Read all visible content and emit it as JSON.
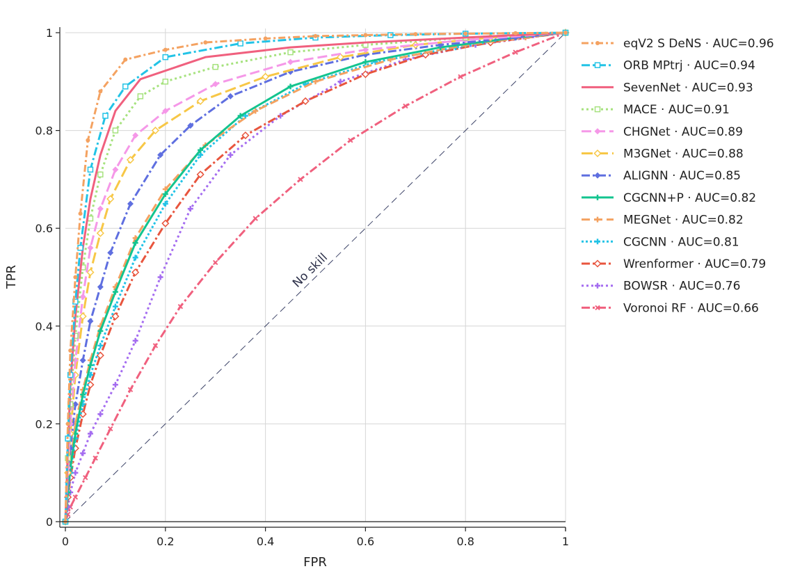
{
  "chart_data": {
    "type": "line",
    "title": "",
    "xlabel": "FPR",
    "ylabel": "TPR",
    "xlim": [
      0,
      1
    ],
    "ylim": [
      0,
      1
    ],
    "grid": true,
    "legend_position": "right",
    "x_ticks": [
      {
        "value": 0,
        "label": "0"
      },
      {
        "value": 0.2,
        "label": "0.2"
      },
      {
        "value": 0.4,
        "label": "0.4"
      },
      {
        "value": 0.6,
        "label": "0.6"
      },
      {
        "value": 0.8,
        "label": "0.8"
      },
      {
        "value": 1,
        "label": "1"
      }
    ],
    "y_ticks": [
      {
        "value": 0,
        "label": "0"
      },
      {
        "value": 0.2,
        "label": "0.2"
      },
      {
        "value": 0.4,
        "label": "0.4"
      },
      {
        "value": 0.6,
        "label": "0.6"
      },
      {
        "value": 0.8,
        "label": "0.8"
      },
      {
        "value": 1,
        "label": "1"
      }
    ],
    "reference_line": {
      "label": "No skill",
      "x": [
        0,
        1
      ],
      "y": [
        0,
        1
      ],
      "color": "#3d4468"
    },
    "series": [
      {
        "name": "eqV2 S DeNS",
        "legend": "eqV2 S DeNS · AUC=0.96",
        "auc": 0.96,
        "color": "#f4a261",
        "dash": "10,4,3,4",
        "marker": "circle",
        "x": [
          0,
          0.005,
          0.01,
          0.02,
          0.03,
          0.045,
          0.07,
          0.12,
          0.2,
          0.28,
          0.4,
          0.5,
          0.6,
          0.7,
          0.8,
          0.9,
          1
        ],
        "y": [
          0,
          0.2,
          0.35,
          0.5,
          0.63,
          0.78,
          0.88,
          0.945,
          0.965,
          0.98,
          0.988,
          0.993,
          0.995,
          0.997,
          0.998,
          0.999,
          1
        ]
      },
      {
        "name": "ORB MPtrj",
        "legend": "ORB MPtrj · AUC=0.94",
        "auc": 0.94,
        "color": "#22c3e6",
        "dash": "12,4,3,4",
        "marker": "square",
        "x": [
          0,
          0.005,
          0.01,
          0.02,
          0.03,
          0.05,
          0.08,
          0.12,
          0.2,
          0.35,
          0.5,
          0.65,
          0.8,
          1
        ],
        "y": [
          0,
          0.17,
          0.3,
          0.45,
          0.56,
          0.72,
          0.83,
          0.89,
          0.95,
          0.978,
          0.99,
          0.995,
          0.998,
          1
        ]
      },
      {
        "name": "SevenNet",
        "legend": "SevenNet · AUC=0.93",
        "auc": 0.93,
        "color": "#f0607e",
        "dash": "",
        "marker": "none",
        "x": [
          0,
          0.005,
          0.01,
          0.02,
          0.035,
          0.05,
          0.07,
          0.1,
          0.15,
          0.28,
          0.45,
          0.6,
          0.8,
          0.9,
          1
        ],
        "y": [
          0,
          0.15,
          0.28,
          0.42,
          0.56,
          0.66,
          0.75,
          0.84,
          0.905,
          0.95,
          0.97,
          0.98,
          0.99,
          0.995,
          1
        ]
      },
      {
        "name": "MACE",
        "legend": "MACE · AUC=0.91",
        "auc": 0.91,
        "color": "#a6e27e",
        "dash": "3,4",
        "marker": "square",
        "x": [
          0,
          0.005,
          0.01,
          0.02,
          0.035,
          0.05,
          0.07,
          0.1,
          0.15,
          0.2,
          0.3,
          0.45,
          0.6,
          0.8,
          1
        ],
        "y": [
          0,
          0.13,
          0.24,
          0.38,
          0.52,
          0.62,
          0.71,
          0.8,
          0.87,
          0.9,
          0.93,
          0.96,
          0.975,
          0.99,
          1
        ]
      },
      {
        "name": "CHGNet",
        "legend": "CHGNet · AUC=0.89",
        "auc": 0.89,
        "color": "#f598e8",
        "dash": "14,6",
        "marker": "diamond",
        "x": [
          0,
          0.005,
          0.01,
          0.02,
          0.035,
          0.05,
          0.07,
          0.1,
          0.14,
          0.2,
          0.3,
          0.45,
          0.6,
          0.8,
          1
        ],
        "y": [
          0,
          0.11,
          0.2,
          0.33,
          0.46,
          0.56,
          0.64,
          0.72,
          0.79,
          0.84,
          0.895,
          0.94,
          0.965,
          0.985,
          1
        ]
      },
      {
        "name": "M3GNet",
        "legend": "M3GNet · AUC=0.88",
        "auc": 0.88,
        "color": "#f7c746",
        "dash": "16,6",
        "marker": "diamond-open",
        "x": [
          0,
          0.005,
          0.01,
          0.02,
          0.035,
          0.05,
          0.07,
          0.09,
          0.13,
          0.18,
          0.27,
          0.4,
          0.55,
          0.7,
          0.85,
          1
        ],
        "y": [
          0,
          0.1,
          0.18,
          0.3,
          0.42,
          0.51,
          0.59,
          0.66,
          0.74,
          0.8,
          0.86,
          0.91,
          0.95,
          0.975,
          0.99,
          1
        ]
      },
      {
        "name": "ALIGNN",
        "legend": "ALIGNN · AUC=0.85",
        "auc": 0.85,
        "color": "#5f6fe0",
        "dash": "12,4,3,4",
        "marker": "diamond",
        "x": [
          0,
          0.005,
          0.01,
          0.02,
          0.035,
          0.05,
          0.07,
          0.09,
          0.13,
          0.19,
          0.25,
          0.33,
          0.45,
          0.6,
          0.75,
          0.9,
          1
        ],
        "y": [
          0,
          0.08,
          0.15,
          0.24,
          0.33,
          0.41,
          0.48,
          0.55,
          0.65,
          0.75,
          0.81,
          0.87,
          0.92,
          0.955,
          0.975,
          0.99,
          1
        ]
      },
      {
        "name": "CGCNN+P",
        "legend": "CGCNN+P · AUC=0.82",
        "auc": 0.82,
        "color": "#13c48f",
        "dash": "",
        "marker": "plus",
        "x": [
          0,
          0.005,
          0.01,
          0.02,
          0.035,
          0.05,
          0.07,
          0.1,
          0.14,
          0.2,
          0.27,
          0.35,
          0.45,
          0.6,
          0.75,
          0.9,
          1
        ],
        "y": [
          0,
          0.06,
          0.11,
          0.18,
          0.26,
          0.32,
          0.39,
          0.47,
          0.57,
          0.67,
          0.76,
          0.83,
          0.89,
          0.94,
          0.97,
          0.99,
          1
        ]
      },
      {
        "name": "MEGNet",
        "legend": "MEGNet · AUC=0.82",
        "auc": 0.82,
        "color": "#f4a261",
        "dash": "12,6",
        "marker": "plus",
        "x": [
          0,
          0.005,
          0.01,
          0.02,
          0.035,
          0.05,
          0.07,
          0.1,
          0.14,
          0.2,
          0.28,
          0.38,
          0.5,
          0.65,
          0.8,
          0.92,
          1
        ],
        "y": [
          0,
          0.07,
          0.12,
          0.2,
          0.27,
          0.33,
          0.4,
          0.48,
          0.58,
          0.68,
          0.77,
          0.84,
          0.9,
          0.945,
          0.975,
          0.99,
          1
        ]
      },
      {
        "name": "CGCNN",
        "legend": "CGCNN · AUC=0.81",
        "auc": 0.81,
        "color": "#22c3e6",
        "dash": "3,3",
        "marker": "plus",
        "x": [
          0,
          0.005,
          0.01,
          0.02,
          0.035,
          0.05,
          0.07,
          0.1,
          0.14,
          0.2,
          0.27,
          0.36,
          0.48,
          0.62,
          0.78,
          0.9,
          1
        ],
        "y": [
          0,
          0.06,
          0.1,
          0.17,
          0.24,
          0.3,
          0.36,
          0.44,
          0.54,
          0.65,
          0.75,
          0.83,
          0.895,
          0.94,
          0.97,
          0.99,
          1
        ]
      },
      {
        "name": "Wrenformer",
        "legend": "Wrenformer · AUC=0.79",
        "auc": 0.79,
        "color": "#e8553e",
        "dash": "12,4,3,4",
        "marker": "diamond-open",
        "x": [
          0,
          0.005,
          0.01,
          0.02,
          0.035,
          0.05,
          0.07,
          0.1,
          0.14,
          0.2,
          0.27,
          0.36,
          0.48,
          0.6,
          0.72,
          0.85,
          1
        ],
        "y": [
          0,
          0.05,
          0.09,
          0.15,
          0.22,
          0.28,
          0.34,
          0.42,
          0.51,
          0.61,
          0.71,
          0.79,
          0.86,
          0.915,
          0.955,
          0.98,
          1
        ]
      },
      {
        "name": "BOWSR",
        "legend": "BOWSR · AUC=0.76",
        "auc": 0.76,
        "color": "#a46cf0",
        "dash": "3,4",
        "marker": "plus",
        "x": [
          0,
          0.005,
          0.01,
          0.02,
          0.035,
          0.05,
          0.07,
          0.1,
          0.14,
          0.19,
          0.25,
          0.33,
          0.43,
          0.55,
          0.68,
          0.82,
          1
        ],
        "y": [
          0,
          0.03,
          0.06,
          0.1,
          0.14,
          0.18,
          0.22,
          0.28,
          0.37,
          0.5,
          0.64,
          0.75,
          0.83,
          0.9,
          0.945,
          0.975,
          1
        ]
      },
      {
        "name": "Voronoi RF",
        "legend": "Voronoi RF · AUC=0.66",
        "auc": 0.66,
        "color": "#f0607e",
        "dash": "12,4,3,4",
        "marker": "cross",
        "x": [
          0,
          0.005,
          0.01,
          0.02,
          0.04,
          0.06,
          0.09,
          0.13,
          0.18,
          0.23,
          0.3,
          0.38,
          0.47,
          0.57,
          0.68,
          0.79,
          0.9,
          1
        ],
        "y": [
          0,
          0.015,
          0.03,
          0.05,
          0.09,
          0.13,
          0.19,
          0.27,
          0.36,
          0.44,
          0.53,
          0.62,
          0.7,
          0.78,
          0.85,
          0.91,
          0.96,
          1
        ]
      }
    ]
  }
}
